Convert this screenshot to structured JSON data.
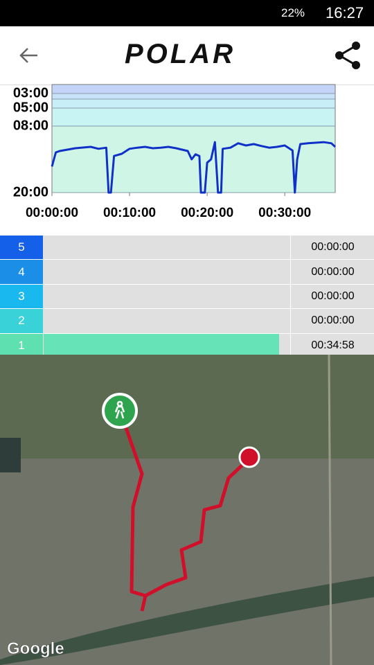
{
  "status_bar": {
    "battery": "22%",
    "time": "16:27"
  },
  "header": {
    "logo": "POLAR"
  },
  "chart_data": {
    "type": "line",
    "x": [
      0,
      0.5,
      1,
      3,
      5,
      6,
      7,
      7.3,
      7.6,
      8,
      9,
      10,
      11,
      12,
      13,
      14,
      15,
      16,
      17.5,
      18,
      18.5,
      19,
      19.2,
      19.7,
      20,
      20.5,
      21,
      21.4,
      21.8,
      22,
      23,
      24,
      25,
      26,
      27,
      28,
      29,
      30,
      31,
      31.3,
      31.6,
      32,
      33,
      34,
      35,
      36,
      36.5
    ],
    "series": [
      {
        "color": "#1030c8",
        "values": [
          15.3,
          12.75,
          12.5,
          12,
          11.75,
          12.1,
          11.9,
          20,
          20,
          13.4,
          13,
          12.1,
          11.9,
          11.75,
          12,
          11.9,
          11.75,
          12,
          12.5,
          14,
          13.1,
          13.4,
          20,
          20,
          14.6,
          14,
          10.9,
          20,
          20,
          12.1,
          11.9,
          11.1,
          11.5,
          11.25,
          11.6,
          11.9,
          11.75,
          11.5,
          12.4,
          20,
          14,
          11.25,
          11.1,
          11,
          10.9,
          11.1,
          11.75
        ]
      }
    ],
    "xlim": [
      0,
      36.5
    ],
    "xticks": [
      {
        "value": 0,
        "label": "00:00:00"
      },
      {
        "value": 10,
        "label": "00:10:00"
      },
      {
        "value": 20,
        "label": "00:20:00"
      },
      {
        "value": 30,
        "label": "00:30:00"
      }
    ],
    "ylim": [
      20,
      1.75
    ],
    "yticks": [
      {
        "value": 3,
        "label": "03:00"
      },
      {
        "value": 5,
        "label": "05:00"
      },
      {
        "value": 8,
        "label": "08:00"
      },
      {
        "value": 20,
        "label": "20:00"
      }
    ]
  },
  "zones": [
    {
      "zone": "5",
      "time": "00:00:00"
    },
    {
      "zone": "4",
      "time": "00:00:00"
    },
    {
      "zone": "3",
      "time": "00:00:00"
    },
    {
      "zone": "2",
      "time": "00:00:00"
    },
    {
      "zone": "1",
      "time": "00:34:58"
    }
  ],
  "map": {
    "attribution": "Google"
  }
}
